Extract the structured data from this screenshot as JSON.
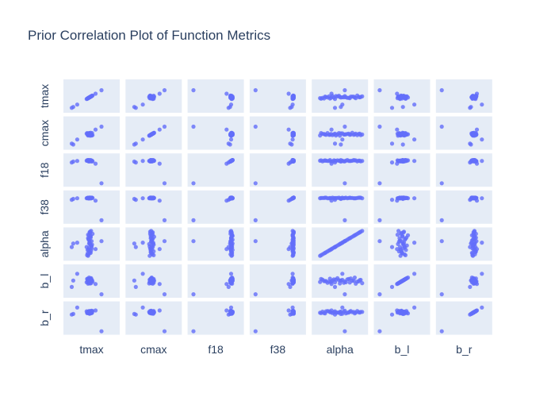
{
  "chart_data": {
    "type": "scatter",
    "title": "Prior Correlation Plot of Function Metrics",
    "variables": [
      "tmax",
      "cmax",
      "f18",
      "f38",
      "alpha",
      "b_l",
      "b_r"
    ],
    "marker_color": "#636efa",
    "background_color": "#e5ecf6",
    "grid": false,
    "legend": "none",
    "samples": {
      "tmax": [
        0.43,
        0.44,
        0.48,
        0.45,
        0.42,
        0.5,
        0.4,
        0.49,
        0.47,
        0.46,
        0.5,
        0.44,
        0.43,
        0.48,
        0.45,
        0.52,
        0.46,
        0.49,
        0.41,
        0.47,
        0.44,
        0.5,
        0.45,
        0.46,
        0.48,
        0.43,
        0.47,
        0.42,
        0.49,
        0.45,
        0.51,
        0.46,
        0.44,
        0.48,
        0.47,
        0.58,
        0.1,
        0.13,
        0.21,
        0.7
      ],
      "cmax": [
        0.42,
        0.47,
        0.45,
        0.5,
        0.44,
        0.43,
        0.48,
        0.46,
        0.41,
        0.49,
        0.45,
        0.47,
        0.44,
        0.51,
        0.46,
        0.43,
        0.48,
        0.45,
        0.5,
        0.44,
        0.47,
        0.42,
        0.49,
        0.46,
        0.45,
        0.48,
        0.43,
        0.47,
        0.44,
        0.46,
        0.5,
        0.45,
        0.48,
        0.44,
        0.47,
        0.62,
        0.14,
        0.11,
        0.28,
        0.72
      ],
      "f18": [
        0.82,
        0.8,
        0.83,
        0.81,
        0.84,
        0.8,
        0.82,
        0.83,
        0.81,
        0.82,
        0.8,
        0.84,
        0.81,
        0.82,
        0.83,
        0.8,
        0.82,
        0.81,
        0.83,
        0.82,
        0.8,
        0.81,
        0.84,
        0.82,
        0.81,
        0.83,
        0.8,
        0.82,
        0.81,
        0.83,
        0.82,
        0.8,
        0.81,
        0.84,
        0.82,
        0.72,
        0.76,
        0.79,
        0.81,
        0.05
      ],
      "f38": [
        0.8,
        0.81,
        0.82,
        0.8,
        0.81,
        0.82,
        0.8,
        0.81,
        0.8,
        0.82,
        0.81,
        0.8,
        0.82,
        0.81,
        0.8,
        0.81,
        0.82,
        0.8,
        0.81,
        0.82,
        0.8,
        0.81,
        0.8,
        0.82,
        0.81,
        0.8,
        0.82,
        0.81,
        0.8,
        0.81,
        0.82,
        0.8,
        0.81,
        0.8,
        0.82,
        0.72,
        0.75,
        0.78,
        0.8,
        0.05
      ],
      "alpha": [
        0.1,
        0.15,
        0.2,
        0.25,
        0.3,
        0.35,
        0.4,
        0.45,
        0.5,
        0.55,
        0.6,
        0.65,
        0.7,
        0.75,
        0.8,
        0.85,
        0.9,
        0.95,
        0.12,
        0.22,
        0.32,
        0.42,
        0.52,
        0.62,
        0.72,
        0.82,
        0.92,
        0.18,
        0.28,
        0.38,
        0.48,
        0.58,
        0.68,
        0.78,
        0.88,
        0.33,
        0.4,
        0.52,
        0.55,
        0.6
      ],
      "b_l": [
        0.47,
        0.55,
        0.5,
        0.44,
        0.58,
        0.52,
        0.46,
        0.6,
        0.42,
        0.54,
        0.49,
        0.56,
        0.45,
        0.51,
        0.62,
        0.48,
        0.53,
        0.43,
        0.57,
        0.5,
        0.47,
        0.55,
        0.52,
        0.46,
        0.59,
        0.41,
        0.54,
        0.5,
        0.48,
        0.56,
        0.53,
        0.44,
        0.57,
        0.51,
        0.49,
        0.4,
        0.3,
        0.52,
        0.75,
        0.05
      ],
      "b_r": [
        0.68,
        0.72,
        0.66,
        0.74,
        0.7,
        0.67,
        0.73,
        0.69,
        0.71,
        0.65,
        0.75,
        0.68,
        0.72,
        0.7,
        0.66,
        0.74,
        0.69,
        0.71,
        0.67,
        0.73,
        0.7,
        0.68,
        0.72,
        0.66,
        0.74,
        0.69,
        0.71,
        0.67,
        0.73,
        0.7,
        0.68,
        0.72,
        0.69,
        0.71,
        0.7,
        0.76,
        0.62,
        0.64,
        0.86,
        0.05
      ]
    }
  }
}
